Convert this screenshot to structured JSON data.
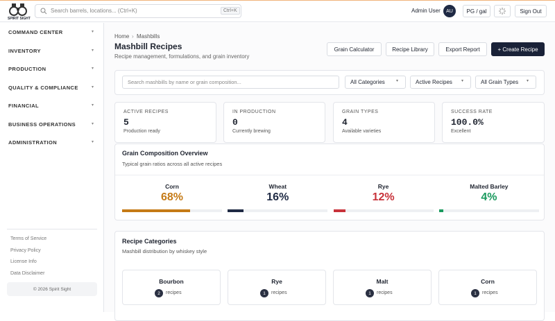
{
  "header": {
    "logo_text": "SPIRIT SIGHT",
    "search_placeholder": "Search barrels, locations... (Ctrl+K)",
    "shortcut": "Ctrl+K",
    "user_name": "Admin User",
    "avatar": "AU",
    "unit_toggle": "PG / gal",
    "sign_out": "Sign Out"
  },
  "sidebar": {
    "nav": [
      "COMMAND CENTER",
      "INVENTORY",
      "PRODUCTION",
      "QUALITY & COMPLIANCE",
      "FINANCIAL",
      "BUSINESS OPERATIONS",
      "ADMINISTRATION"
    ],
    "links": [
      "Terms of Service",
      "Privacy Policy",
      "License Info",
      "Data Disclaimer"
    ],
    "copyright": "© 2026 Spirit Sight"
  },
  "main": {
    "breadcrumb": [
      "Home",
      "Mashbills"
    ],
    "title": "Mashbill Recipes",
    "subtitle": "Recipe management, formulations, and grain inventory",
    "buttons": [
      "Grain Calculator",
      "Recipe Library",
      "Export Report",
      "+ Create Recipe"
    ],
    "filters": {
      "search_placeholder": "Search mashbills by name or grain composition...",
      "selects": [
        "All Categories",
        "Active Recipes",
        "All Grain Types"
      ]
    },
    "stats": [
      {
        "label": "ACTIVE RECIPES",
        "value": "5",
        "note": "Production ready"
      },
      {
        "label": "IN PRODUCTION",
        "value": "0",
        "note": "Currently brewing"
      },
      {
        "label": "GRAIN TYPES",
        "value": "4",
        "note": "Available varieties"
      },
      {
        "label": "SUCCESS RATE",
        "value": "100.0%",
        "note": "Excellent"
      }
    ],
    "grain_composition": {
      "title": "Grain Composition Overview",
      "subtitle": "Typical grain ratios across all active recipes",
      "items": [
        {
          "name": "Corn",
          "value": 68,
          "label": "68%",
          "color": "#c57a16"
        },
        {
          "name": "Wheat",
          "value": 16,
          "label": "16%",
          "color": "#1f2a44"
        },
        {
          "name": "Rye",
          "value": 12,
          "label": "12%",
          "color": "#c8323a"
        },
        {
          "name": "Malted Barley",
          "value": 4,
          "label": "4%",
          "color": "#1a9a5e"
        }
      ]
    },
    "categories": {
      "title": "Recipe Categories",
      "subtitle": "Mashbill distribution by whiskey style",
      "count_label": "recipes",
      "items": [
        {
          "name": "Bourbon",
          "count": 2
        },
        {
          "name": "Rye",
          "count": 1
        },
        {
          "name": "Malt",
          "count": 1
        },
        {
          "name": "Corn",
          "count": 1
        }
      ]
    }
  }
}
